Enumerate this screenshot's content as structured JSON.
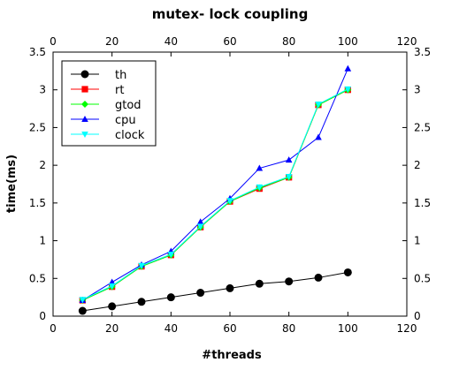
{
  "chart_data": {
    "type": "line",
    "title": "mutex- lock coupling",
    "xlabel": "#threads",
    "ylabel": "time(ms)",
    "xlim": [
      0,
      120
    ],
    "ylim": [
      0,
      3.5
    ],
    "xticks": [
      0,
      20,
      40,
      60,
      80,
      100,
      120
    ],
    "yticks": [
      0,
      0.5,
      1,
      1.5,
      2,
      2.5,
      3,
      3.5
    ],
    "xtick_labels": [
      "0",
      "20",
      "40",
      "60",
      "80",
      "100",
      "120"
    ],
    "ytick_labels": [
      "0",
      "0.5",
      "1",
      "1.5",
      "2",
      "2.5",
      "3",
      "3.5"
    ],
    "grid": false,
    "legend_position": "top-left",
    "x": [
      10,
      20,
      30,
      40,
      50,
      60,
      70,
      80,
      90,
      100
    ],
    "series": [
      {
        "name": "th",
        "color": "#000000",
        "marker": "circle",
        "values": [
          0.07,
          0.13,
          0.19,
          0.25,
          0.31,
          0.37,
          0.43,
          0.46,
          0.51,
          0.58
        ]
      },
      {
        "name": "rt",
        "color": "#ff0000",
        "marker": "square",
        "values": [
          0.21,
          0.39,
          0.66,
          0.81,
          1.18,
          1.52,
          1.69,
          1.84,
          2.8,
          3.0
        ]
      },
      {
        "name": "gtod",
        "color": "#00ff00",
        "marker": "diamond",
        "values": [
          0.21,
          0.39,
          0.66,
          0.81,
          1.18,
          1.52,
          1.7,
          1.84,
          2.8,
          3.0
        ]
      },
      {
        "name": "cpu",
        "color": "#0000ff",
        "marker": "triangle-up",
        "values": [
          0.21,
          0.45,
          0.68,
          0.86,
          1.25,
          1.56,
          1.96,
          2.07,
          2.37,
          3.28
        ]
      },
      {
        "name": "clock",
        "color": "#00ffff",
        "marker": "triangle-down",
        "values": [
          0.22,
          0.4,
          0.67,
          0.82,
          1.19,
          1.53,
          1.71,
          1.85,
          2.81,
          3.01
        ]
      }
    ]
  }
}
